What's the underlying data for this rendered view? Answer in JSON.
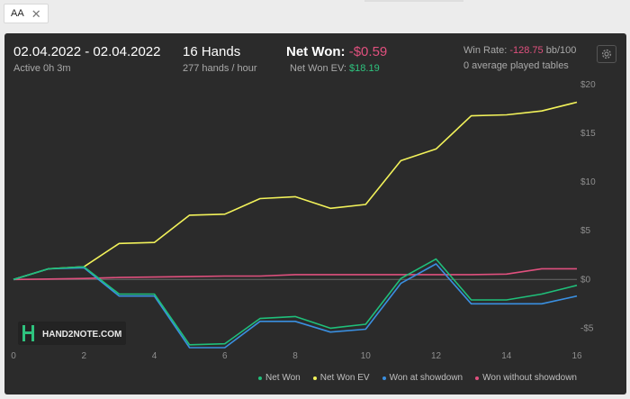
{
  "filter": {
    "tag_label": "AA",
    "close_glyph": "✕"
  },
  "summary": {
    "date_range": "02.04.2022 - 02.04.2022",
    "active_time": "Active 0h 3m",
    "hands": "16 Hands",
    "hands_per_hour": "277 hands / hour",
    "net_won_label": "Net Won:",
    "net_won_value": "-$0.59",
    "net_won_ev_label": "Net Won  EV:",
    "net_won_ev_value": "$18.19",
    "win_rate_label": "Win Rate:",
    "win_rate_value": "-128.75",
    "win_rate_unit": "bb/100",
    "avg_tables": "0 average played tables"
  },
  "watermark": {
    "text": "HAND2NOTE.COM"
  },
  "icons": {
    "settings": "gear-icon",
    "close": "close-icon",
    "logo": "hand2note-logo-icon"
  },
  "colors": {
    "net_won": "#1fbf7a",
    "net_won_ev": "#f2f25a",
    "won_at_showdown": "#3a8fe0",
    "won_without_showdown": "#e0507e",
    "negative_value": "#e0507e",
    "positive_value": "#2ec27e",
    "panel_bg": "#2b2b2b"
  },
  "chart_data": {
    "type": "line",
    "xlabel": "",
    "ylabel": "",
    "xlim": [
      0,
      16
    ],
    "ylim": [
      -7,
      20
    ],
    "x_ticks": [
      0,
      2,
      4,
      6,
      8,
      10,
      12,
      14,
      16
    ],
    "x_tick_labels": [
      "0",
      "2",
      "4",
      "6",
      "8",
      "10",
      "12",
      "14",
      "16"
    ],
    "y_ticks": [
      -5,
      0,
      5,
      10,
      15,
      20
    ],
    "y_tick_labels": [
      "-$5",
      "$0",
      "$5",
      "$10",
      "$15",
      "$20"
    ],
    "grid": false,
    "legend_position": "bottom-right",
    "x": [
      0,
      1,
      2,
      3,
      4,
      5,
      6,
      7,
      8,
      9,
      10,
      11,
      12,
      13,
      14,
      15,
      16
    ],
    "series": [
      {
        "name": "Net Won",
        "color": "#1fbf7a",
        "values": [
          0,
          1.1,
          1.3,
          -1.5,
          -1.5,
          -6.7,
          -6.6,
          -4.0,
          -3.8,
          -5.0,
          -4.6,
          0.1,
          2.1,
          -2.1,
          -2.1,
          -1.5,
          -0.6
        ]
      },
      {
        "name": "Net Won  EV",
        "color": "#f2f25a",
        "values": [
          0,
          1.1,
          1.3,
          3.7,
          3.8,
          6.6,
          6.7,
          8.3,
          8.5,
          7.3,
          7.7,
          12.2,
          13.4,
          16.8,
          16.9,
          17.3,
          18.2
        ]
      },
      {
        "name": "Won at showdown",
        "color": "#3a8fe0",
        "values": [
          0,
          1.1,
          1.2,
          -1.7,
          -1.7,
          -7.0,
          -7.0,
          -4.3,
          -4.3,
          -5.4,
          -5.1,
          -0.4,
          1.6,
          -2.5,
          -2.5,
          -2.5,
          -1.7
        ]
      },
      {
        "name": "Won without showdown",
        "color": "#e0507e",
        "values": [
          0,
          0.05,
          0.1,
          0.2,
          0.25,
          0.3,
          0.35,
          0.35,
          0.5,
          0.5,
          0.5,
          0.5,
          0.5,
          0.5,
          0.55,
          1.1,
          1.1
        ]
      }
    ]
  }
}
